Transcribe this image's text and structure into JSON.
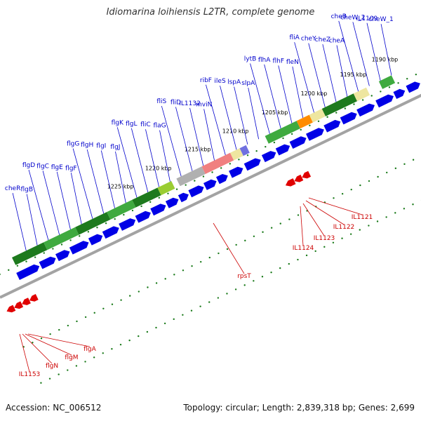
{
  "title": "Idiomarina loihiensis L2TR, complete genome",
  "footer": {
    "accession": "Accession: NC_006512",
    "summary": "Topology: circular; Length: 2,839,318 bp; Genes: 2,699"
  },
  "colors": {
    "forward_gene": "#0000e6",
    "reverse_gene": "#e00000",
    "label_forward": "#0000cc",
    "label_reverse": "#cc0000",
    "backbone": "#a3a3a3",
    "tick": "#1a7a1a",
    "cog_green_dark": "#1d7a1d",
    "cog_green_light": "#3faa3f",
    "cog_yellowgreen": "#9acd32",
    "cog_khaki": "#eee6a0",
    "cog_orange": "#ff8c00",
    "cog_pink": "#f08080",
    "cog_gray": "#b0b0b0",
    "cog_purple": "#7070e0"
  },
  "ticks": [
    "1190 kbp",
    "1195 kbp",
    "1200 kbp",
    "1205 kbp",
    "1210 kbp",
    "1215 kbp",
    "1220 kbp",
    "1225 kbp"
  ],
  "forward_labels": [
    "cheW_1",
    "IL1109",
    "cheW_2",
    "cheB",
    "cheA",
    "cheZ",
    "cheY",
    "fliA",
    "fleN",
    "flhF",
    "flhA",
    "lytB",
    "slpA",
    "lspA",
    "ileS",
    "ribF",
    "mviN",
    "IL1132",
    "fliD",
    "fliS",
    "flaG",
    "fliC",
    "flgL",
    "flgK",
    "flgJ",
    "flgI",
    "flgH",
    "flgG",
    "flgF",
    "flgE",
    "flgC",
    "flgD",
    "flgB",
    "cheR"
  ],
  "reverse_labels": [
    "IL1121",
    "IL1122",
    "IL1123",
    "IL1124",
    "rpsT",
    "flgA",
    "flgM",
    "flgN",
    "IL1153"
  ]
}
